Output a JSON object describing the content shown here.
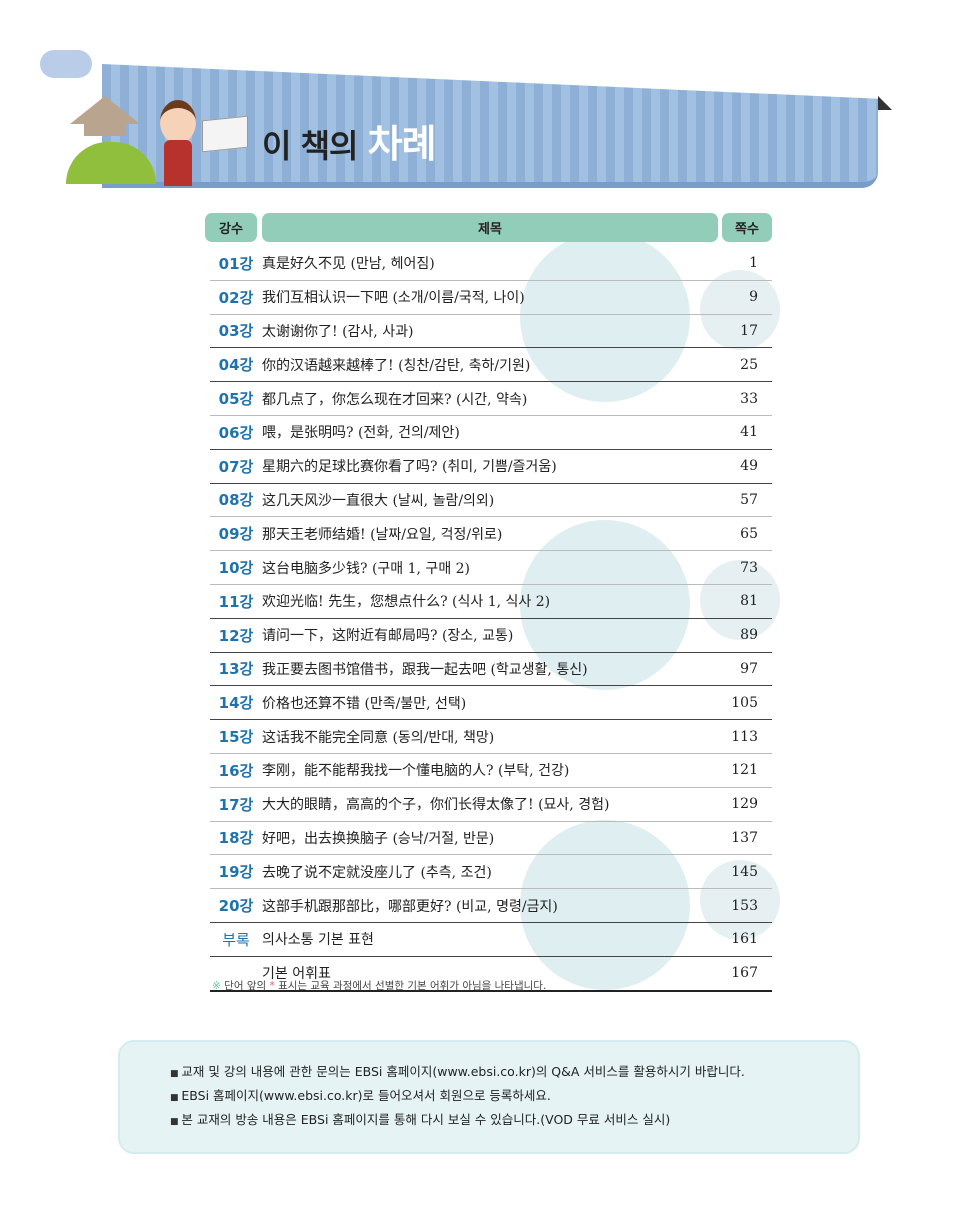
{
  "header": {
    "title_part1": "이 책의",
    "title_part2": "차례"
  },
  "table": {
    "columns": [
      "강수",
      "제목",
      "쪽수"
    ],
    "rows": [
      {
        "no": "01강",
        "title": "真是好久不见 (만남, 헤어짐)",
        "page": "1"
      },
      {
        "no": "02강",
        "title": "我们互相认识一下吧 (소개/이름/국적, 나이)",
        "page": "9"
      },
      {
        "no": "03강",
        "title": "太谢谢你了! (감사, 사과)",
        "page": "17"
      },
      {
        "no": "04강",
        "title": "你的汉语越来越棒了! (칭찬/감탄, 축하/기원)",
        "page": "25"
      },
      {
        "no": "05강",
        "title": "都几点了，你怎么现在才回来? (시간, 약속)",
        "page": "33"
      },
      {
        "no": "06강",
        "title": "喂，是张明吗? (전화, 건의/제안)",
        "page": "41"
      },
      {
        "no": "07강",
        "title": "星期六的足球比赛你看了吗? (취미, 기쁨/즐거움)",
        "page": "49"
      },
      {
        "no": "08강",
        "title": "这几天风沙一直很大 (날씨, 놀람/의외)",
        "page": "57"
      },
      {
        "no": "09강",
        "title": "那天王老师结婚! (날짜/요일, 걱정/위로)",
        "page": "65"
      },
      {
        "no": "10강",
        "title": "这台电脑多少钱? (구매 1, 구매 2)",
        "page": "73"
      },
      {
        "no": "11강",
        "title": "欢迎光临! 先生，您想点什么? (식사 1, 식사 2)",
        "page": "81"
      },
      {
        "no": "12강",
        "title": "请问一下，这附近有邮局吗? (장소, 교통)",
        "page": "89"
      },
      {
        "no": "13강",
        "title": "我正要去图书馆借书，跟我一起去吧 (학교생활, 통신)",
        "page": "97"
      },
      {
        "no": "14강",
        "title": "价格也还算不错 (만족/불만, 선택)",
        "page": "105"
      },
      {
        "no": "15강",
        "title": "这话我不能完全同意 (동의/반대, 책망)",
        "page": "113"
      },
      {
        "no": "16강",
        "title": "李刚，能不能帮我找一个懂电脑的人? (부탁, 건강)",
        "page": "121"
      },
      {
        "no": "17강",
        "title": "大大的眼睛，高高的个子，你们长得太像了! (묘사, 경험)",
        "page": "129"
      },
      {
        "no": "18강",
        "title": "好吧，出去换换脑子 (승낙/거절, 반문)",
        "page": "137"
      },
      {
        "no": "19강",
        "title": "去晚了说不定就没座儿了 (추측, 조건)",
        "page": "145"
      },
      {
        "no": "20강",
        "title": "这部手机跟那部比，哪部更好? (비교, 명령/금지)",
        "page": "153"
      },
      {
        "no": "부록",
        "title": "의사소통 기본 표현",
        "page": "161"
      },
      {
        "no": "",
        "title": "기본 어휘표",
        "page": "167"
      }
    ]
  },
  "note": {
    "mark": "※",
    "text1": "단어 앞의",
    "star": "*",
    "text2": "표시는 교육 과정에서 선별한 기본 어휘가 아님을 나타냅니다."
  },
  "info": [
    "교재 및 강의 내용에 관한 문의는 EBSi 홈페이지(www.ebsi.co.kr)의 Q&A 서비스를 활용하시기 바랍니다.",
    "EBSi 홈페이지(www.ebsi.co.kr)로 들어오셔서 회원으로 등록하세요.",
    "본 교재의 방송 내용은 EBSi 홈페이지를 통해 다시 보실 수 있습니다.(VOD 무료 서비스 실시)"
  ],
  "colors": {
    "banner": "#8fb0d6",
    "header_cell": "#91cdb9",
    "lesson_no": "#1f73ad",
    "info_bg": "#e6f3f4"
  }
}
